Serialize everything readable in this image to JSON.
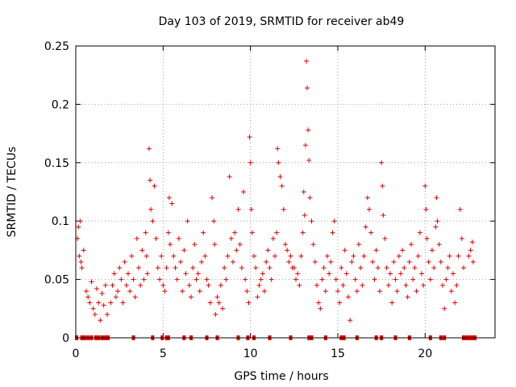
{
  "chart_data": {
    "type": "scatter",
    "title": "Day 103 of 2019, SRMTID for receiver ab49",
    "xlabel": "GPS time / hours",
    "ylabel": "SRMTID / TECUs",
    "xlim": [
      0,
      24
    ],
    "ylim": [
      0,
      0.25
    ],
    "x_ticks": [
      {
        "value": 0,
        "label": "0"
      },
      {
        "value": 5,
        "label": "5"
      },
      {
        "value": 10,
        "label": "10"
      },
      {
        "value": 15,
        "label": "15"
      },
      {
        "value": 20,
        "label": "20"
      }
    ],
    "y_ticks": [
      {
        "value": 0,
        "label": "0"
      },
      {
        "value": 0.05,
        "label": "0.05"
      },
      {
        "value": 0.1,
        "label": "0.1"
      },
      {
        "value": 0.15,
        "label": "0.15"
      },
      {
        "value": 0.2,
        "label": "0.2"
      },
      {
        "value": 0.25,
        "label": "0.25"
      }
    ],
    "grid": true,
    "marker": "+",
    "color": "#e00000",
    "series": [
      {
        "name": "SRMTID",
        "points": [
          [
            0.1,
            0.085
          ],
          [
            0.15,
            0.095
          ],
          [
            0.2,
            0.07
          ],
          [
            0.25,
            0.1
          ],
          [
            0.3,
            0.065
          ],
          [
            0.35,
            0.06
          ],
          [
            0.45,
            0.075
          ],
          [
            0.6,
            0.04
          ],
          [
            0.7,
            0.035
          ],
          [
            0.8,
            0.03
          ],
          [
            0.9,
            0.048
          ],
          [
            1.0,
            0.025
          ],
          [
            1.1,
            0.02
          ],
          [
            1.2,
            0.042
          ],
          [
            1.3,
            0.03
          ],
          [
            1.4,
            0.015
          ],
          [
            1.5,
            0.038
          ],
          [
            1.6,
            0.028
          ],
          [
            1.7,
            0.045
          ],
          [
            1.8,
            0.02
          ],
          [
            2.0,
            0.03
          ],
          [
            2.1,
            0.045
          ],
          [
            2.2,
            0.055
          ],
          [
            2.3,
            0.035
          ],
          [
            2.4,
            0.04
          ],
          [
            2.5,
            0.06
          ],
          [
            2.6,
            0.05
          ],
          [
            2.7,
            0.03
          ],
          [
            2.8,
            0.065
          ],
          [
            2.9,
            0.045
          ],
          [
            3.0,
            0.055
          ],
          [
            3.1,
            0.04
          ],
          [
            3.2,
            0.07
          ],
          [
            3.3,
            0.05
          ],
          [
            3.4,
            0.035
          ],
          [
            3.5,
            0.085
          ],
          [
            3.6,
            0.06
          ],
          [
            3.7,
            0.045
          ],
          [
            3.8,
            0.075
          ],
          [
            3.9,
            0.05
          ],
          [
            4.0,
            0.09
          ],
          [
            4.05,
            0.07
          ],
          [
            4.1,
            0.055
          ],
          [
            4.2,
            0.162
          ],
          [
            4.25,
            0.135
          ],
          [
            4.3,
            0.11
          ],
          [
            4.4,
            0.1
          ],
          [
            4.5,
            0.13
          ],
          [
            4.6,
            0.085
          ],
          [
            4.7,
            0.06
          ],
          [
            4.8,
            0.05
          ],
          [
            4.9,
            0.07
          ],
          [
            5.0,
            0.045
          ],
          [
            5.1,
            0.04
          ],
          [
            5.2,
            0.06
          ],
          [
            5.3,
            0.09
          ],
          [
            5.35,
            0.12
          ],
          [
            5.4,
            0.08
          ],
          [
            5.5,
            0.115
          ],
          [
            5.6,
            0.07
          ],
          [
            5.7,
            0.06
          ],
          [
            5.8,
            0.05
          ],
          [
            5.9,
            0.085
          ],
          [
            6.0,
            0.065
          ],
          [
            6.1,
            0.04
          ],
          [
            6.2,
            0.075
          ],
          [
            6.3,
            0.055
          ],
          [
            6.4,
            0.1
          ],
          [
            6.5,
            0.045
          ],
          [
            6.6,
            0.035
          ],
          [
            6.7,
            0.06
          ],
          [
            6.8,
            0.08
          ],
          [
            6.9,
            0.05
          ],
          [
            7.0,
            0.055
          ],
          [
            7.1,
            0.04
          ],
          [
            7.2,
            0.065
          ],
          [
            7.3,
            0.09
          ],
          [
            7.4,
            0.07
          ],
          [
            7.5,
            0.05
          ],
          [
            7.6,
            0.045
          ],
          [
            7.7,
            0.03
          ],
          [
            7.8,
            0.12
          ],
          [
            7.9,
            0.1
          ],
          [
            7.95,
            0.08
          ],
          [
            8.0,
            0.02
          ],
          [
            8.1,
            0.035
          ],
          [
            8.2,
            0.03
          ],
          [
            8.3,
            0.045
          ],
          [
            8.4,
            0.025
          ],
          [
            8.5,
            0.06
          ],
          [
            8.6,
            0.05
          ],
          [
            8.7,
            0.07
          ],
          [
            8.8,
            0.138
          ],
          [
            8.9,
            0.085
          ],
          [
            9.0,
            0.065
          ],
          [
            9.1,
            0.09
          ],
          [
            9.2,
            0.075
          ],
          [
            9.3,
            0.11
          ],
          [
            9.4,
            0.08
          ],
          [
            9.5,
            0.06
          ],
          [
            9.6,
            0.125
          ],
          [
            9.7,
            0.05
          ],
          [
            9.8,
            0.04
          ],
          [
            9.9,
            0.03
          ],
          [
            9.95,
            0.172
          ],
          [
            10.0,
            0.15
          ],
          [
            10.05,
            0.11
          ],
          [
            10.1,
            0.09
          ],
          [
            10.2,
            0.07
          ],
          [
            10.3,
            0.06
          ],
          [
            10.4,
            0.035
          ],
          [
            10.5,
            0.045
          ],
          [
            10.6,
            0.05
          ],
          [
            10.7,
            0.055
          ],
          [
            10.8,
            0.04
          ],
          [
            10.9,
            0.065
          ],
          [
            11.0,
            0.075
          ],
          [
            11.1,
            0.06
          ],
          [
            11.2,
            0.05
          ],
          [
            11.3,
            0.085
          ],
          [
            11.4,
            0.07
          ],
          [
            11.5,
            0.09
          ],
          [
            11.55,
            0.162
          ],
          [
            11.6,
            0.15
          ],
          [
            11.7,
            0.138
          ],
          [
            11.8,
            0.13
          ],
          [
            11.9,
            0.11
          ],
          [
            12.0,
            0.08
          ],
          [
            12.1,
            0.075
          ],
          [
            12.2,
            0.065
          ],
          [
            12.3,
            0.07
          ],
          [
            12.4,
            0.06
          ],
          [
            12.5,
            0.06
          ],
          [
            12.6,
            0.05
          ],
          [
            12.7,
            0.055
          ],
          [
            12.8,
            0.045
          ],
          [
            12.9,
            0.07
          ],
          [
            13.0,
            0.09
          ],
          [
            13.05,
            0.125
          ],
          [
            13.1,
            0.105
          ],
          [
            13.15,
            0.165
          ],
          [
            13.2,
            0.237
          ],
          [
            13.25,
            0.214
          ],
          [
            13.3,
            0.178
          ],
          [
            13.35,
            0.152
          ],
          [
            13.4,
            0.12
          ],
          [
            13.5,
            0.1
          ],
          [
            13.6,
            0.08
          ],
          [
            13.7,
            0.065
          ],
          [
            13.8,
            0.045
          ],
          [
            13.9,
            0.03
          ],
          [
            14.0,
            0.025
          ],
          [
            14.1,
            0.05
          ],
          [
            14.2,
            0.06
          ],
          [
            14.3,
            0.04
          ],
          [
            14.4,
            0.07
          ],
          [
            14.5,
            0.055
          ],
          [
            14.6,
            0.065
          ],
          [
            14.7,
            0.09
          ],
          [
            14.8,
            0.1
          ],
          [
            14.9,
            0.05
          ],
          [
            15.0,
            0.04
          ],
          [
            15.1,
            0.03
          ],
          [
            15.2,
            0.06
          ],
          [
            15.3,
            0.045
          ],
          [
            15.4,
            0.075
          ],
          [
            15.5,
            0.055
          ],
          [
            15.6,
            0.035
          ],
          [
            15.7,
            0.015
          ],
          [
            15.8,
            0.065
          ],
          [
            15.9,
            0.07
          ],
          [
            16.0,
            0.05
          ],
          [
            16.1,
            0.04
          ],
          [
            16.2,
            0.08
          ],
          [
            16.3,
            0.06
          ],
          [
            16.4,
            0.045
          ],
          [
            16.5,
            0.07
          ],
          [
            16.6,
            0.095
          ],
          [
            16.7,
            0.12
          ],
          [
            16.8,
            0.11
          ],
          [
            16.9,
            0.09
          ],
          [
            17.0,
            0.065
          ],
          [
            17.1,
            0.05
          ],
          [
            17.2,
            0.075
          ],
          [
            17.3,
            0.06
          ],
          [
            17.4,
            0.04
          ],
          [
            17.5,
            0.15
          ],
          [
            17.55,
            0.13
          ],
          [
            17.6,
            0.105
          ],
          [
            17.7,
            0.085
          ],
          [
            17.8,
            0.06
          ],
          [
            17.9,
            0.045
          ],
          [
            18.0,
            0.055
          ],
          [
            18.1,
            0.03
          ],
          [
            18.2,
            0.065
          ],
          [
            18.3,
            0.05
          ],
          [
            18.4,
            0.04
          ],
          [
            18.5,
            0.07
          ],
          [
            18.6,
            0.055
          ],
          [
            18.7,
            0.075
          ],
          [
            18.8,
            0.06
          ],
          [
            18.9,
            0.045
          ],
          [
            19.0,
            0.035
          ],
          [
            19.1,
            0.065
          ],
          [
            19.2,
            0.08
          ],
          [
            19.3,
            0.05
          ],
          [
            19.4,
            0.06
          ],
          [
            19.5,
            0.04
          ],
          [
            19.6,
            0.07
          ],
          [
            19.7,
            0.09
          ],
          [
            19.8,
            0.055
          ],
          [
            19.9,
            0.045
          ],
          [
            20.0,
            0.13
          ],
          [
            20.05,
            0.11
          ],
          [
            20.1,
            0.085
          ],
          [
            20.2,
            0.065
          ],
          [
            20.3,
            0.05
          ],
          [
            20.4,
            0.075
          ],
          [
            20.5,
            0.06
          ],
          [
            20.6,
            0.095
          ],
          [
            20.65,
            0.12
          ],
          [
            20.7,
            0.1
          ],
          [
            20.8,
            0.08
          ],
          [
            20.9,
            0.065
          ],
          [
            21.0,
            0.045
          ],
          [
            21.1,
            0.025
          ],
          [
            21.2,
            0.05
          ],
          [
            21.3,
            0.06
          ],
          [
            21.4,
            0.07
          ],
          [
            21.5,
            0.04
          ],
          [
            21.6,
            0.055
          ],
          [
            21.7,
            0.03
          ],
          [
            21.8,
            0.045
          ],
          [
            21.9,
            0.07
          ],
          [
            22.0,
            0.11
          ],
          [
            22.1,
            0.085
          ],
          [
            22.2,
            0.06
          ],
          [
            22.5,
            0.07
          ],
          [
            22.6,
            0.075
          ],
          [
            22.7,
            0.082
          ],
          [
            22.75,
            0.065
          ],
          [
            0.05,
            0
          ],
          [
            0.35,
            0
          ],
          [
            0.5,
            0
          ],
          [
            0.7,
            0
          ],
          [
            0.9,
            0
          ],
          [
            1.15,
            0
          ],
          [
            1.3,
            0
          ],
          [
            1.5,
            0
          ],
          [
            1.65,
            0
          ],
          [
            1.75,
            0
          ],
          [
            1.85,
            0
          ],
          [
            3.3,
            0
          ],
          [
            4.4,
            0
          ],
          [
            4.95,
            0
          ],
          [
            5.2,
            0
          ],
          [
            5.3,
            0
          ],
          [
            6.2,
            0
          ],
          [
            6.6,
            0
          ],
          [
            7.5,
            0
          ],
          [
            8.1,
            0
          ],
          [
            9.3,
            0
          ],
          [
            9.85,
            0
          ],
          [
            10.2,
            0
          ],
          [
            11.1,
            0
          ],
          [
            12.3,
            0
          ],
          [
            13.35,
            0
          ],
          [
            13.5,
            0
          ],
          [
            14.3,
            0
          ],
          [
            15.2,
            0
          ],
          [
            15.35,
            0
          ],
          [
            16.1,
            0
          ],
          [
            17.2,
            0
          ],
          [
            17.5,
            0
          ],
          [
            18.3,
            0
          ],
          [
            19.1,
            0
          ],
          [
            20.3,
            0
          ],
          [
            20.9,
            0
          ],
          [
            21.1,
            0
          ],
          [
            22.2,
            0
          ],
          [
            22.35,
            0
          ],
          [
            22.5,
            0
          ],
          [
            22.6,
            0
          ],
          [
            22.7,
            0
          ],
          [
            22.85,
            0
          ]
        ]
      }
    ]
  }
}
